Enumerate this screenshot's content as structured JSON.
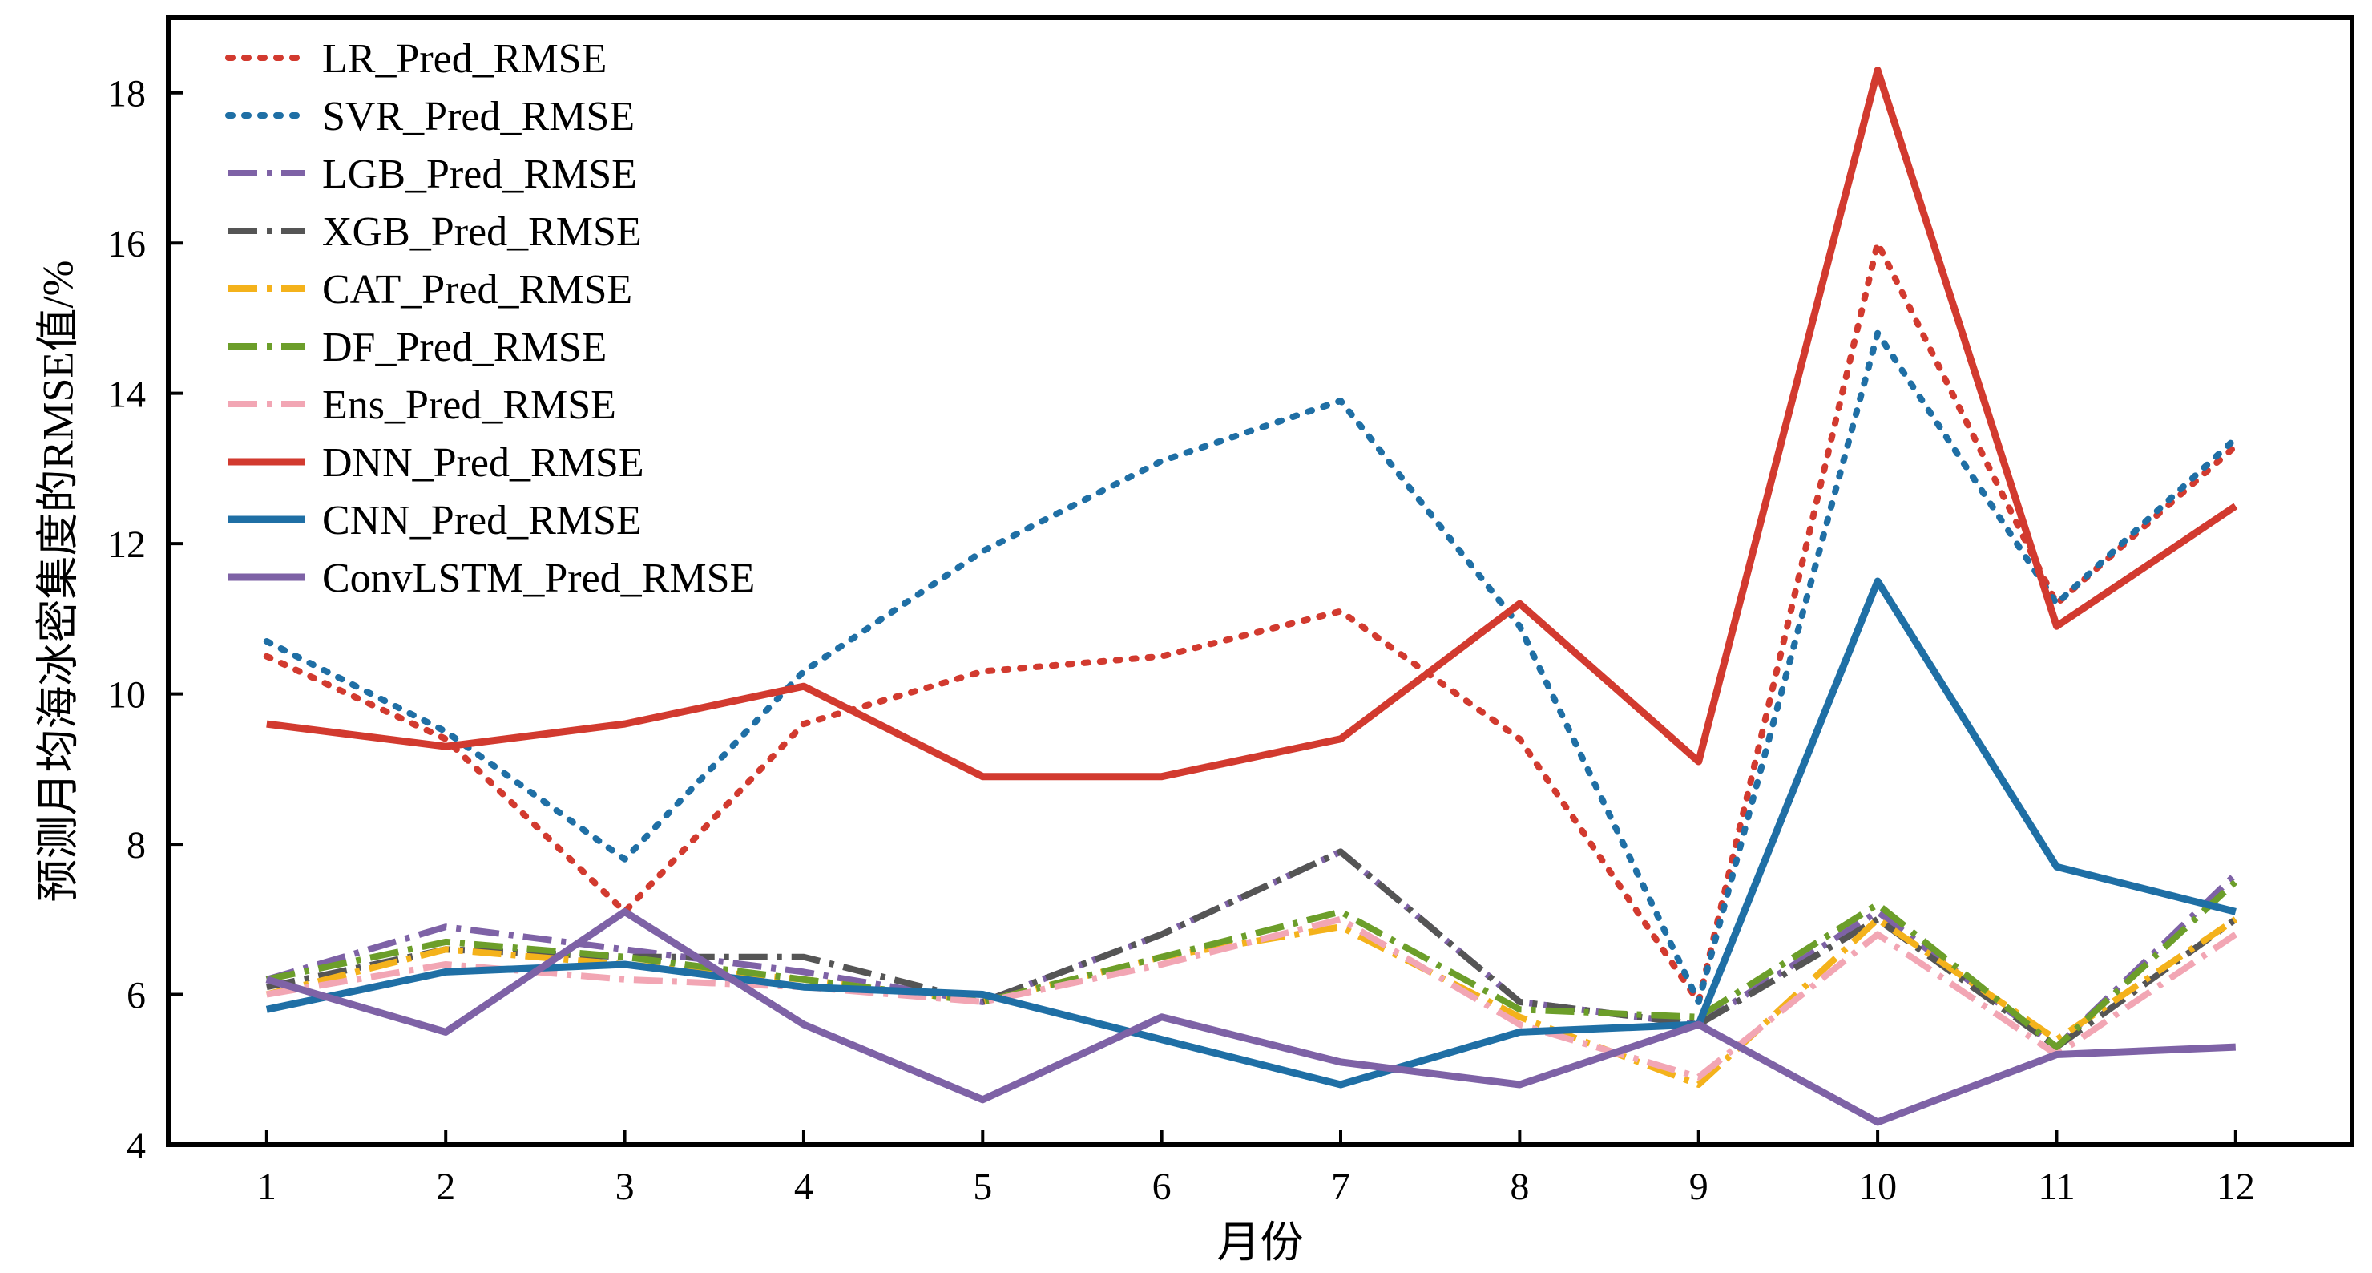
{
  "chart_data": {
    "type": "line",
    "xlabel": "月份",
    "ylabel": "预测月均海冰密集度的RMSE值/%",
    "x": [
      1,
      2,
      3,
      4,
      5,
      6,
      7,
      8,
      9,
      10,
      11,
      12
    ],
    "xlim": [
      0.45,
      12.65
    ],
    "ylim": [
      4,
      19
    ],
    "yticks": [
      4,
      6,
      8,
      10,
      12,
      14,
      16,
      18
    ],
    "grid": false,
    "legend_position": "top-left",
    "series": [
      {
        "name": "LR_Pred_RMSE",
        "color": "#d23a2f",
        "style": "dotted",
        "values": [
          10.5,
          9.4,
          7.1,
          9.6,
          10.3,
          10.5,
          11.1,
          9.4,
          5.9,
          16.0,
          11.2,
          13.3
        ]
      },
      {
        "name": "SVR_Pred_RMSE",
        "color": "#1f6fa5",
        "style": "dotted",
        "values": [
          10.7,
          9.5,
          7.8,
          10.3,
          11.9,
          13.1,
          13.9,
          10.9,
          5.9,
          14.8,
          11.2,
          13.4
        ]
      },
      {
        "name": "LGB_Pred_RMSE",
        "color": "#7e62a6",
        "style": "dashdot",
        "values": [
          6.2,
          6.9,
          6.6,
          6.3,
          5.9,
          6.8,
          7.9,
          5.9,
          5.6,
          7.1,
          5.3,
          7.6
        ]
      },
      {
        "name": "XGB_Pred_RMSE",
        "color": "#555555",
        "style": "dashdot",
        "values": [
          6.1,
          6.6,
          6.5,
          6.5,
          5.9,
          6.8,
          7.9,
          5.9,
          5.6,
          7.0,
          5.3,
          7.0
        ]
      },
      {
        "name": "CAT_Pred_RMSE",
        "color": "#f4b21b",
        "style": "dashdot",
        "values": [
          6.0,
          6.6,
          6.4,
          6.2,
          5.9,
          6.5,
          6.9,
          5.7,
          4.8,
          7.0,
          5.4,
          7.0
        ]
      },
      {
        "name": "DF_Pred_RMSE",
        "color": "#6c9e2a",
        "style": "dashdot",
        "values": [
          6.2,
          6.7,
          6.5,
          6.2,
          5.9,
          6.5,
          7.1,
          5.8,
          5.7,
          7.2,
          5.3,
          7.5
        ]
      },
      {
        "name": "Ens_Pred_RMSE",
        "color": "#f2a6b4",
        "style": "dashdot",
        "values": [
          6.0,
          6.4,
          6.2,
          6.1,
          5.9,
          6.4,
          7.0,
          5.6,
          4.9,
          6.8,
          5.2,
          6.8
        ]
      },
      {
        "name": "DNN_Pred_RMSE",
        "color": "#d23a2f",
        "style": "solid",
        "values": [
          9.6,
          9.3,
          9.6,
          10.1,
          8.9,
          8.9,
          9.4,
          11.2,
          9.1,
          18.3,
          10.9,
          12.5
        ]
      },
      {
        "name": "CNN_Pred_RMSE",
        "color": "#1f6fa5",
        "style": "solid",
        "values": [
          5.8,
          6.3,
          6.4,
          6.1,
          6.0,
          5.4,
          4.8,
          5.5,
          5.6,
          11.5,
          7.7,
          7.1
        ]
      },
      {
        "name": "ConvLSTM_Pred_RMSE",
        "color": "#7e62a6",
        "style": "solid",
        "values": [
          6.2,
          5.5,
          7.1,
          5.6,
          4.6,
          5.7,
          5.1,
          4.8,
          5.6,
          4.3,
          5.2,
          5.3
        ]
      }
    ]
  }
}
